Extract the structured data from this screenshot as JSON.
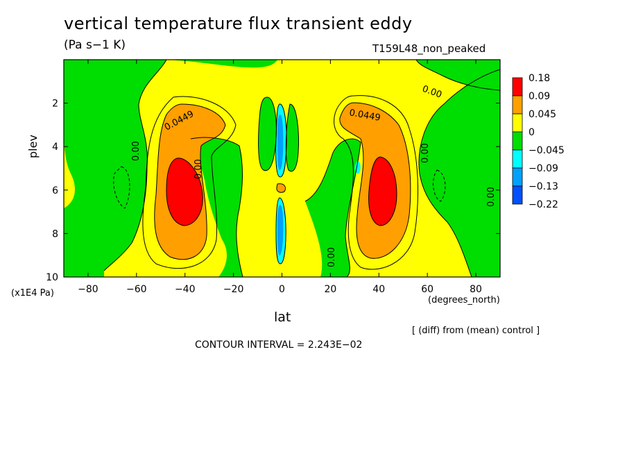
{
  "chart_data": {
    "type": "contour",
    "title": "vertical temperature flux transient eddy",
    "units": "(Pa s−1 K)",
    "run_label": "T159L48_non_peaked",
    "xlabel": "lat",
    "x_unit": "(degrees_north)",
    "ylabel": "plev",
    "y_unit": "(x1E4 Pa)",
    "note": "[ (diff) from (mean) control ]",
    "contour_interval_label": "CONTOUR INTERVAL = 2.243E−02",
    "xlim": [
      -90,
      90
    ],
    "ylim": [
      10,
      0
    ],
    "x_ticks": [
      -80,
      -60,
      -40,
      -20,
      0,
      20,
      40,
      60,
      80
    ],
    "x_tick_labels": [
      "−80",
      "−60",
      "−40",
      "−20",
      "0",
      "20",
      "40",
      "60",
      "80"
    ],
    "y_ticks": [
      2,
      4,
      6,
      8,
      10
    ],
    "y_tick_labels": [
      "2",
      "4",
      "6",
      "8",
      "10"
    ],
    "contour_labels": [
      "0.0449",
      "0.0449",
      "0.00",
      "0.00",
      "0.00",
      "0.00",
      "0.00",
      "0.00"
    ],
    "colorbar": {
      "levels": [
        "0.18",
        "0.09",
        "0.045",
        "0",
        "−0.045",
        "−0.09",
        "−0.13",
        "−0.22"
      ],
      "colors": [
        "#ff0000",
        "#ff9f00",
        "#ffff00",
        "#00dd00",
        "#00ffff",
        "#00a0ff",
        "#0050ff"
      ]
    },
    "colors": {
      "background_green": "#00dd00",
      "yellow": "#ffff00",
      "orange": "#ff9f00",
      "red": "#ff0000",
      "cyan": "#00ffff",
      "light_blue": "#00a0ff",
      "blue": "#0050ff"
    }
  }
}
